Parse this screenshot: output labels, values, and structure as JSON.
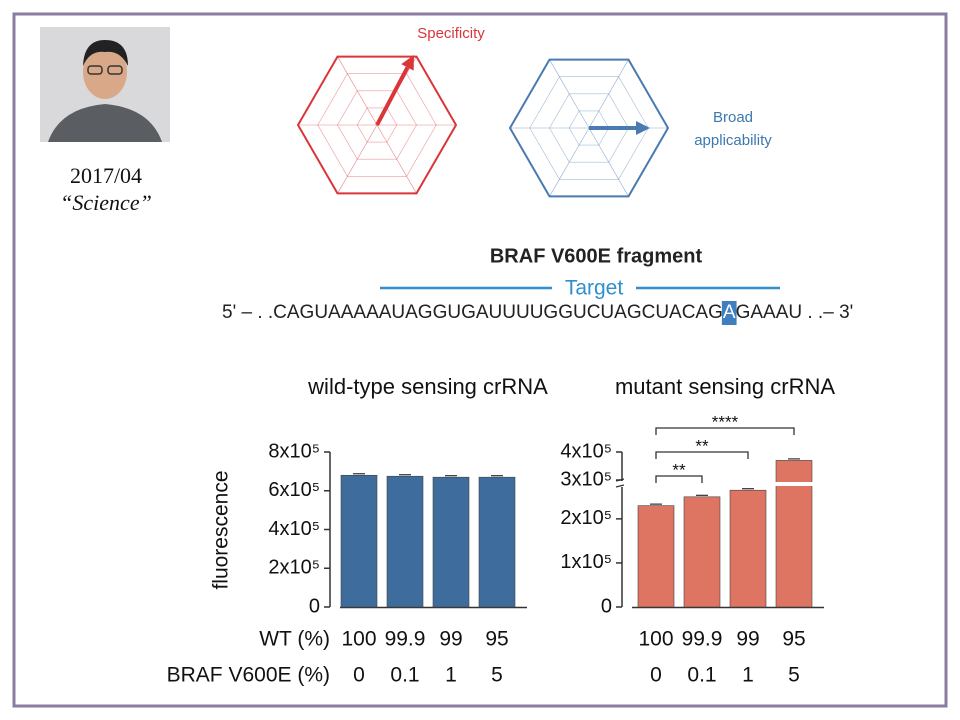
{
  "slide": {
    "date": "2017/04",
    "journal": "“Science”"
  },
  "radar": {
    "left_label": "Specificity",
    "right_label_lines": [
      "Broad",
      "applicability"
    ]
  },
  "sequence": {
    "title": "BRAF V600E fragment",
    "target": "Target",
    "prime5": "5' – . . ",
    "before": "CAGUAAAAAUAGGUGAUUUUGGUCUAGCUACAG",
    "mutant": "A",
    "after": "GAAAU . . ",
    "prime3": "– 3'"
  },
  "row_labels": [
    "WT (%)",
    "BRAF V600E (%)"
  ],
  "chart_data": [
    {
      "type": "bar",
      "title": "wild-type sensing crRNA",
      "ylabel": "fluorescence",
      "categories": [
        "100",
        "99.9",
        "99",
        "95"
      ],
      "mutant_pct": [
        "0",
        "0.1",
        "1",
        "5"
      ],
      "values": [
        680000,
        675000,
        670000,
        670000
      ],
      "color": "#3d6c9d",
      "ylim": [
        0,
        800000
      ],
      "yticks": [
        0,
        {
          "value": 200000,
          "label": "2x10⁵"
        },
        {
          "value": 400000,
          "label": "4x10⁵"
        },
        {
          "value": 600000,
          "label": "6x10⁵"
        },
        {
          "value": 800000,
          "label": "8x10⁵"
        }
      ]
    },
    {
      "type": "bar",
      "title": "mutant sensing crRNA",
      "categories": [
        "100",
        "99.9",
        "99",
        "95"
      ],
      "mutant_pct": [
        "0",
        "0.1",
        "1",
        "5"
      ],
      "values": [
        230000,
        250000,
        265000,
        370000
      ],
      "color": "#de7462",
      "ylim": [
        0,
        400000
      ],
      "ybreak": [
        270000,
        300000
      ],
      "yticks": [
        0,
        {
          "value": 100000,
          "label": "1x10⁵"
        },
        {
          "value": 200000,
          "label": "2x10⁵"
        },
        {
          "value": 300000,
          "label": "3x10⁵"
        },
        {
          "value": 400000,
          "label": "4x10⁵"
        }
      ],
      "significance": [
        {
          "from": 0,
          "to": 1,
          "label": "**"
        },
        {
          "from": 0,
          "to": 2,
          "label": "**"
        },
        {
          "from": 0,
          "to": 3,
          "label": "****"
        }
      ]
    }
  ]
}
